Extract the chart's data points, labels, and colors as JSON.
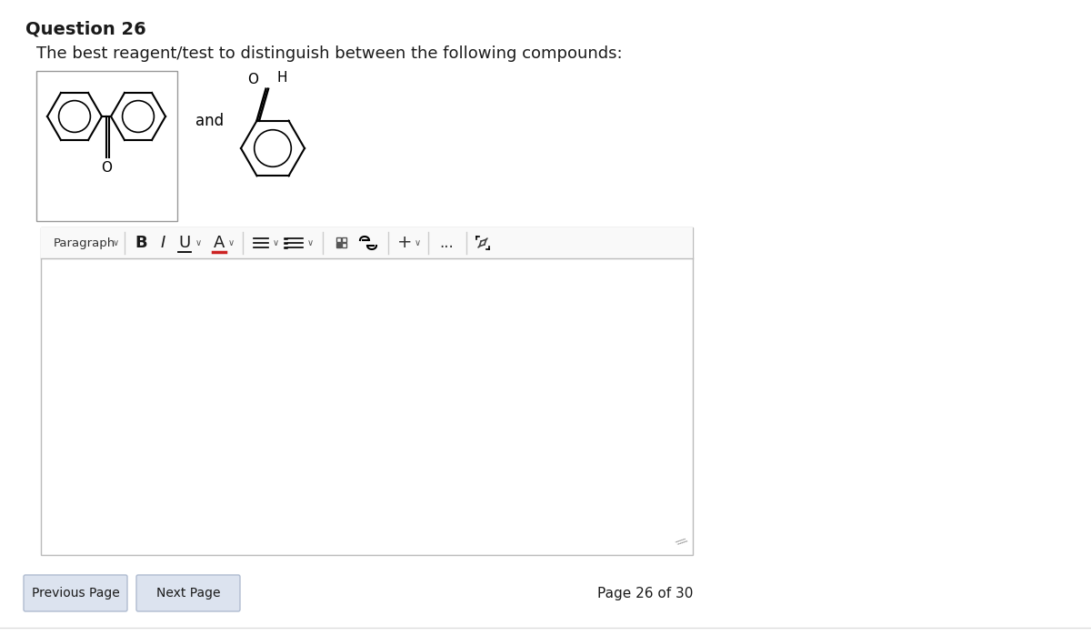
{
  "title": "Question 26",
  "subtitle": "The best reagent/test to distinguish between the following compounds:",
  "bg_color": "#ffffff",
  "title_fontsize": 14,
  "subtitle_fontsize": 13,
  "and_text": "and",
  "prev_btn": "Previous Page",
  "next_btn": "Next Page",
  "page_text": "Page 26 of 30",
  "btn_color": "#dce3ef",
  "frame_border": "#bbbbbb",
  "text_color": "#1a1a1a",
  "toolbar_bg": "#ffffff",
  "content_bg": "#ffffff"
}
